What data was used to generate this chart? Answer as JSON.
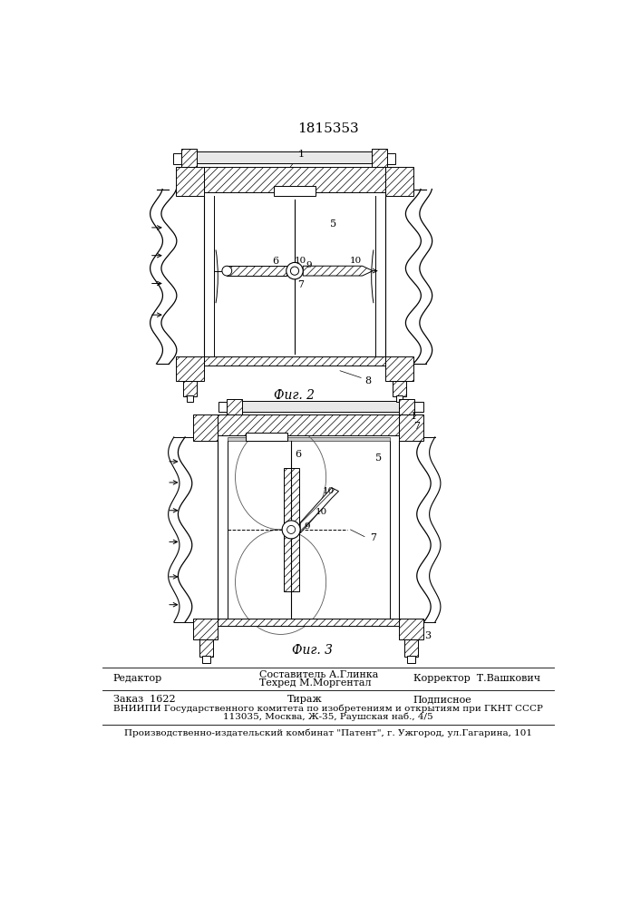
{
  "patent_number": "1815353",
  "fig2_label": "Фиг. 2",
  "fig3_label": "Фиг. 3",
  "footer_col1_l1": "Редактор",
  "footer_col2_l1": "Составитель А.Глинка",
  "footer_col2_l2": "Техред М.Моргентал",
  "footer_col3_l1": "Корректор  Т.Вашкович",
  "footer2_col1": "Заказ  1622",
  "footer2_col2": "Тираж",
  "footer2_col3": "Подписное",
  "footer_vniipи": "ВНИИПИ Государственного комитета по изобретениям и открытиям при ГКНТ СССР",
  "footer_address": "113035, Москва, Ж-35, Раушская наб., 4/5",
  "footer_plant": "Производственно-издательский комбинат \"Патент\", г. Ужгород, ул.Гагарина, 101"
}
